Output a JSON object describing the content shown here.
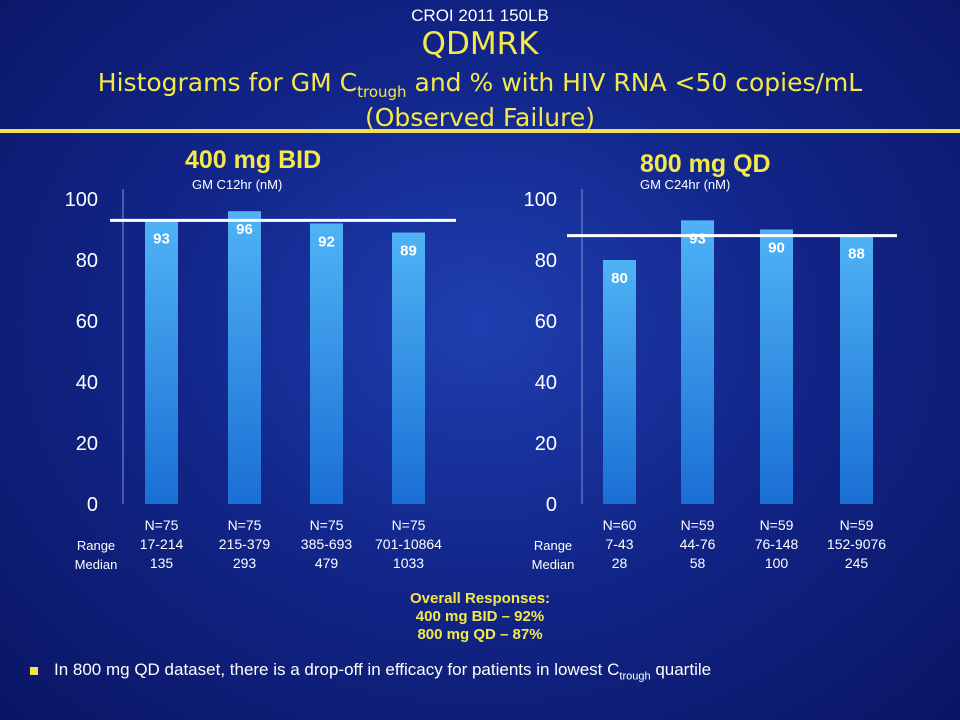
{
  "header": {
    "source": "CROI 2011 150LB",
    "study": "QDMRK",
    "subtitle_pre": "Histograms for GM C",
    "subtitle_sub": "trough",
    "subtitle_post": " and % with HIV RNA <50 copies/mL",
    "subtitle_line2": "(Observed Failure)"
  },
  "chart_data": [
    {
      "type": "bar",
      "title": "400 mg BID",
      "xlabel": "GM C12hr (nM)",
      "ylim": [
        0,
        100
      ],
      "yticks": [
        0,
        20,
        40,
        60,
        80,
        100
      ],
      "values": [
        93,
        96,
        92,
        89
      ],
      "reference_line": 93,
      "row_labels": [
        "Range",
        "Median"
      ],
      "categories": [
        {
          "n": "N=75",
          "range": "17-214",
          "median": "135"
        },
        {
          "n": "N=75",
          "range": "215-379",
          "median": "293"
        },
        {
          "n": "N=75",
          "range": "385-693",
          "median": "479"
        },
        {
          "n": "N=75",
          "range": "701-10864",
          "median": "1033"
        }
      ]
    },
    {
      "type": "bar",
      "title": "800 mg QD",
      "xlabel": "GM C24hr (nM)",
      "ylim": [
        0,
        100
      ],
      "yticks": [
        0,
        20,
        40,
        60,
        80,
        100
      ],
      "values": [
        80,
        93,
        90,
        88
      ],
      "reference_line": 88,
      "row_labels": [
        "Range",
        "Median"
      ],
      "categories": [
        {
          "n": "N=60",
          "range": "7-43",
          "median": "28"
        },
        {
          "n": "N=59",
          "range": "44-76",
          "median": "58"
        },
        {
          "n": "N=59",
          "range": "76-148",
          "median": "100"
        },
        {
          "n": "N=59",
          "range": "152-9076",
          "median": "245"
        }
      ]
    }
  ],
  "overall": {
    "heading": "Overall Responses:",
    "line1": "400 mg BID – 92%",
    "line2": "800 mg QD – 87%"
  },
  "bullet": {
    "pre": "In 800 mg QD dataset, there is a drop-off in efficacy for patients in lowest C",
    "sub": "trough",
    "post": " quartile"
  },
  "colors": {
    "accent": "#f5e84b",
    "bar_top": "#4fb3f5",
    "bar_bottom": "#1a6fd4"
  }
}
